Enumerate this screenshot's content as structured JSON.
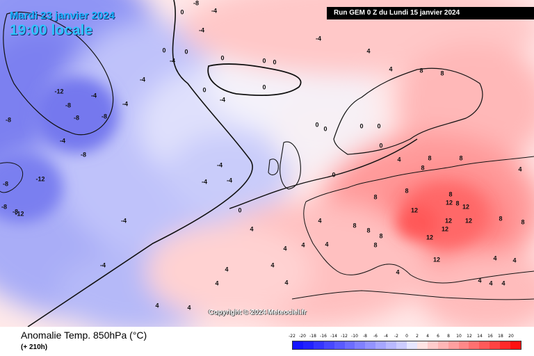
{
  "header": {
    "date": "Mardi 23 janvier 2024",
    "time": "19:00 locale",
    "run": "Run GEM 0 Z du Lundi 15 janvier 2024"
  },
  "footer": {
    "title": "Anomalie Temp. 850hPa (°C)",
    "lead": "(+ 210h)"
  },
  "copyright": "Copyright © 2024 Meteociel.fr",
  "legend": {
    "ticks": [
      "-22",
      "-20",
      "-18",
      "-16",
      "-14",
      "-12",
      "-10",
      "-8",
      "-6",
      "-4",
      "-2",
      "0",
      "2",
      "4",
      "6",
      "8",
      "10",
      "12",
      "14",
      "16",
      "18",
      "20"
    ],
    "colors": [
      "#1515ff",
      "#2222ff",
      "#3535ff",
      "#4848ff",
      "#5a5aff",
      "#6d6dff",
      "#8080ff",
      "#9393ff",
      "#a6a6ff",
      "#b9b9ff",
      "#ccccff",
      "#e6e6ff",
      "#ffe4e4",
      "#ffcccc",
      "#ffb6b6",
      "#ff9f9f",
      "#ff8888",
      "#ff7070",
      "#ff5959",
      "#ff4242",
      "#ff2a2a",
      "#ff1111"
    ]
  },
  "contour_labels": [
    {
      "text": "0",
      "pos": [
        262,
        18
      ]
    },
    {
      "text": "-8",
      "pos": [
        282,
        5
      ]
    },
    {
      "text": "-4",
      "pos": [
        308,
        16
      ]
    },
    {
      "text": "-4",
      "pos": [
        290,
        44
      ]
    },
    {
      "text": "0",
      "pos": [
        236,
        73
      ]
    },
    {
      "text": "-4",
      "pos": [
        248,
        88
      ]
    },
    {
      "text": "0",
      "pos": [
        268,
        75
      ]
    },
    {
      "text": "-4",
      "pos": [
        205,
        115
      ]
    },
    {
      "text": "-4",
      "pos": [
        180,
        150
      ]
    },
    {
      "text": "-4",
      "pos": [
        135,
        138
      ]
    },
    {
      "text": "-12",
      "pos": [
        85,
        132
      ]
    },
    {
      "text": "-8",
      "pos": [
        98,
        152
      ]
    },
    {
      "text": "-8",
      "pos": [
        110,
        170
      ]
    },
    {
      "text": "-8",
      "pos": [
        150,
        168
      ]
    },
    {
      "text": "-8",
      "pos": [
        12,
        173
      ]
    },
    {
      "text": "-4",
      "pos": [
        90,
        203
      ]
    },
    {
      "text": "-8",
      "pos": [
        120,
        223
      ]
    },
    {
      "text": "-12",
      "pos": [
        58,
        258
      ]
    },
    {
      "text": "-8",
      "pos": [
        8,
        265
      ]
    },
    {
      "text": "-8",
      "pos": [
        6,
        298
      ]
    },
    {
      "text": "-12",
      "pos": [
        28,
        308
      ]
    },
    {
      "text": "-8",
      "pos": [
        22,
        305
      ]
    },
    {
      "text": "-4",
      "pos": [
        178,
        318
      ]
    },
    {
      "text": "-4",
      "pos": [
        148,
        382
      ]
    },
    {
      "text": "-4",
      "pos": [
        316,
        238
      ]
    },
    {
      "text": "-4",
      "pos": [
        330,
        260
      ]
    },
    {
      "text": "-4",
      "pos": [
        294,
        262
      ]
    },
    {
      "text": "0",
      "pos": [
        345,
        303
      ]
    },
    {
      "text": "0",
      "pos": [
        320,
        84
      ]
    },
    {
      "text": "0",
      "pos": [
        380,
        88
      ]
    },
    {
      "text": "0",
      "pos": [
        395,
        90
      ]
    },
    {
      "text": "0",
      "pos": [
        380,
        126
      ]
    },
    {
      "text": "0",
      "pos": [
        294,
        130
      ]
    },
    {
      "text": "-4",
      "pos": [
        320,
        144
      ]
    },
    {
      "text": "-4",
      "pos": [
        458,
        56
      ]
    },
    {
      "text": "4",
      "pos": [
        530,
        74
      ]
    },
    {
      "text": "4",
      "pos": [
        562,
        100
      ]
    },
    {
      "text": "8",
      "pos": [
        636,
        106
      ]
    },
    {
      "text": "8",
      "pos": [
        606,
        102
      ]
    },
    {
      "text": "0",
      "pos": [
        456,
        180
      ]
    },
    {
      "text": "0",
      "pos": [
        468,
        186
      ]
    },
    {
      "text": "0",
      "pos": [
        520,
        182
      ]
    },
    {
      "text": "0",
      "pos": [
        545,
        182
      ]
    },
    {
      "text": "0",
      "pos": [
        548,
        210
      ]
    },
    {
      "text": "0",
      "pos": [
        480,
        252
      ]
    },
    {
      "text": "8",
      "pos": [
        618,
        228
      ]
    },
    {
      "text": "8",
      "pos": [
        663,
        228
      ]
    },
    {
      "text": "8",
      "pos": [
        608,
        242
      ]
    },
    {
      "text": "4",
      "pos": [
        748,
        244
      ]
    },
    {
      "text": "4",
      "pos": [
        574,
        230
      ]
    },
    {
      "text": "8",
      "pos": [
        648,
        280
      ]
    },
    {
      "text": "8",
      "pos": [
        658,
        293
      ]
    },
    {
      "text": "12",
      "pos": [
        646,
        292
      ]
    },
    {
      "text": "12",
      "pos": [
        670,
        298
      ]
    },
    {
      "text": "12",
      "pos": [
        596,
        303
      ]
    },
    {
      "text": "12",
      "pos": [
        645,
        318
      ]
    },
    {
      "text": "12",
      "pos": [
        674,
        318
      ]
    },
    {
      "text": "12",
      "pos": [
        618,
        342
      ]
    },
    {
      "text": "12",
      "pos": [
        628,
        374
      ]
    },
    {
      "text": "12",
      "pos": [
        640,
        330
      ]
    },
    {
      "text": "8",
      "pos": [
        540,
        284
      ]
    },
    {
      "text": "8",
      "pos": [
        585,
        275
      ]
    },
    {
      "text": "8",
      "pos": [
        510,
        325
      ]
    },
    {
      "text": "8",
      "pos": [
        530,
        332
      ]
    },
    {
      "text": "4",
      "pos": [
        460,
        318
      ]
    },
    {
      "text": "4",
      "pos": [
        436,
        353
      ]
    },
    {
      "text": "4",
      "pos": [
        410,
        358
      ]
    },
    {
      "text": "4",
      "pos": [
        470,
        352
      ]
    },
    {
      "text": "8",
      "pos": [
        540,
        353
      ]
    },
    {
      "text": "8",
      "pos": [
        720,
        315
      ]
    },
    {
      "text": "8",
      "pos": [
        752,
        320
      ]
    },
    {
      "text": "4",
      "pos": [
        712,
        372
      ]
    },
    {
      "text": "4",
      "pos": [
        740,
        375
      ]
    },
    {
      "text": "4",
      "pos": [
        690,
        404
      ]
    },
    {
      "text": "4",
      "pos": [
        706,
        408
      ]
    },
    {
      "text": "4",
      "pos": [
        724,
        408
      ]
    },
    {
      "text": "4",
      "pos": [
        362,
        330
      ]
    },
    {
      "text": "4",
      "pos": [
        392,
        382
      ]
    },
    {
      "text": "4",
      "pos": [
        412,
        407
      ]
    },
    {
      "text": "4",
      "pos": [
        326,
        388
      ]
    },
    {
      "text": "4",
      "pos": [
        312,
        408
      ]
    },
    {
      "text": "4",
      "pos": [
        226,
        440
      ]
    },
    {
      "text": "4",
      "pos": [
        272,
        443
      ]
    },
    {
      "text": "4",
      "pos": [
        572,
        392
      ]
    },
    {
      "text": "8",
      "pos": [
        548,
        340
      ]
    }
  ]
}
